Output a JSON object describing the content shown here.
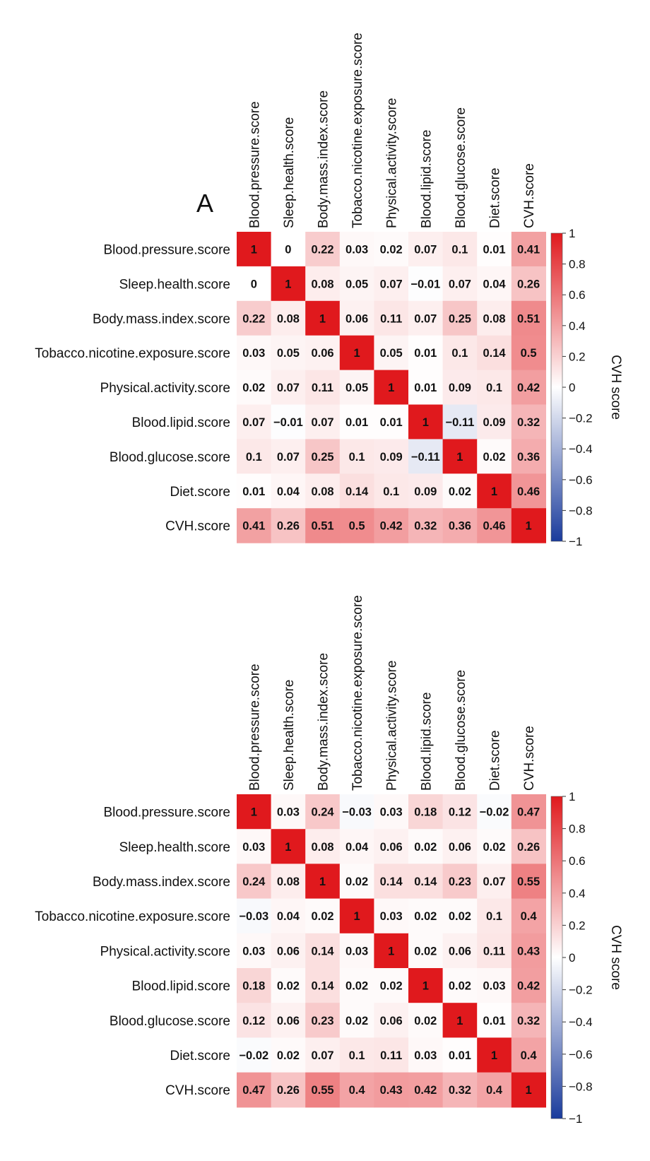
{
  "chart_data": [
    {
      "type": "heatmap",
      "panel_label": "A",
      "rows": [
        "Blood.pressure.score",
        "Sleep.health.score",
        "Body.mass.index.score",
        "Tobacco.nicotine.exposure.score",
        "Physical.activity.score",
        "Blood.lipid.score",
        "Blood.glucose.score",
        "Diet.score",
        "CVH.score"
      ],
      "columns": [
        "Blood.pressure.score",
        "Sleep.health.score",
        "Body.mass.index.score",
        "Tobacco.nicotine.exposure.score",
        "Physical.activity.score",
        "Blood.lipid.score",
        "Blood.glucose.score",
        "Diet.score",
        "CVH.score"
      ],
      "values": [
        [
          1,
          0,
          0.22,
          0.03,
          0.02,
          0.07,
          0.1,
          0.01,
          0.41
        ],
        [
          0,
          1,
          0.08,
          0.05,
          0.07,
          -0.01,
          0.07,
          0.04,
          0.26
        ],
        [
          0.22,
          0.08,
          1,
          0.06,
          0.11,
          0.07,
          0.25,
          0.08,
          0.51
        ],
        [
          0.03,
          0.05,
          0.06,
          1,
          0.05,
          0.01,
          0.1,
          0.14,
          0.5
        ],
        [
          0.02,
          0.07,
          0.11,
          0.05,
          1,
          0.01,
          0.09,
          0.1,
          0.42
        ],
        [
          0.07,
          -0.01,
          0.07,
          0.01,
          0.01,
          1,
          -0.11,
          0.09,
          0.32
        ],
        [
          0.1,
          0.07,
          0.25,
          0.1,
          0.09,
          -0.11,
          1,
          0.02,
          0.36
        ],
        [
          0.01,
          0.04,
          0.08,
          0.14,
          0.1,
          0.09,
          0.02,
          1,
          0.46
        ],
        [
          0.41,
          0.26,
          0.51,
          0.5,
          0.42,
          0.32,
          0.36,
          0.46,
          1
        ]
      ],
      "colorbar": {
        "label": "CVH score",
        "range": [
          -1,
          1
        ],
        "ticks": [
          1,
          0.8,
          0.6,
          0.4,
          0.2,
          0,
          -0.2,
          -0.4,
          -0.6,
          -0.8,
          -1
        ],
        "tick_labels": [
          "1",
          "0.8",
          "0.6",
          "0.4",
          "0.2",
          "0",
          "−0.2",
          "−0.4",
          "−0.6",
          "−0.8",
          "−1"
        ],
        "colors": {
          "low": "#1a3b9c",
          "mid": "#ffffff",
          "high": "#e0191d"
        }
      }
    },
    {
      "type": "heatmap",
      "panel_label": "",
      "rows": [
        "Blood.pressure.score",
        "Sleep.health.score",
        "Body.mass.index.score",
        "Tobacco.nicotine.exposure.score",
        "Physical.activity.score",
        "Blood.lipid.score",
        "Blood.glucose.score",
        "Diet.score",
        "CVH.score"
      ],
      "columns": [
        "Blood.pressure.score",
        "Sleep.health.score",
        "Body.mass.index.score",
        "Tobacco.nicotine.exposure.score",
        "Physical.activity.score",
        "Blood.lipid.score",
        "Blood.glucose.score",
        "Diet.score",
        "CVH.score"
      ],
      "values": [
        [
          1,
          0.03,
          0.24,
          -0.03,
          0.03,
          0.18,
          0.12,
          -0.02,
          0.47
        ],
        [
          0.03,
          1,
          0.08,
          0.04,
          0.06,
          0.02,
          0.06,
          0.02,
          0.26
        ],
        [
          0.24,
          0.08,
          1,
          0.02,
          0.14,
          0.14,
          0.23,
          0.07,
          0.55
        ],
        [
          -0.03,
          0.04,
          0.02,
          1,
          0.03,
          0.02,
          0.02,
          0.1,
          0.4
        ],
        [
          0.03,
          0.06,
          0.14,
          0.03,
          1,
          0.02,
          0.06,
          0.11,
          0.43
        ],
        [
          0.18,
          0.02,
          0.14,
          0.02,
          0.02,
          1,
          0.02,
          0.03,
          0.42
        ],
        [
          0.12,
          0.06,
          0.23,
          0.02,
          0.06,
          0.02,
          1,
          0.01,
          0.32
        ],
        [
          -0.02,
          0.02,
          0.07,
          0.1,
          0.11,
          0.03,
          0.01,
          1,
          0.4
        ],
        [
          0.47,
          0.26,
          0.55,
          0.4,
          0.43,
          0.42,
          0.32,
          0.4,
          1
        ]
      ],
      "colorbar": {
        "label": "CVH score",
        "range": [
          -1,
          1
        ],
        "ticks": [
          1,
          0.8,
          0.6,
          0.4,
          0.2,
          0,
          -0.2,
          -0.4,
          -0.6,
          -0.8,
          -1
        ],
        "tick_labels": [
          "1",
          "0.8",
          "0.6",
          "0.4",
          "0.2",
          "0",
          "−0.2",
          "−0.4",
          "−0.6",
          "−0.8",
          "−1"
        ],
        "colors": {
          "low": "#1a3b9c",
          "mid": "#ffffff",
          "high": "#e0191d"
        }
      }
    }
  ]
}
